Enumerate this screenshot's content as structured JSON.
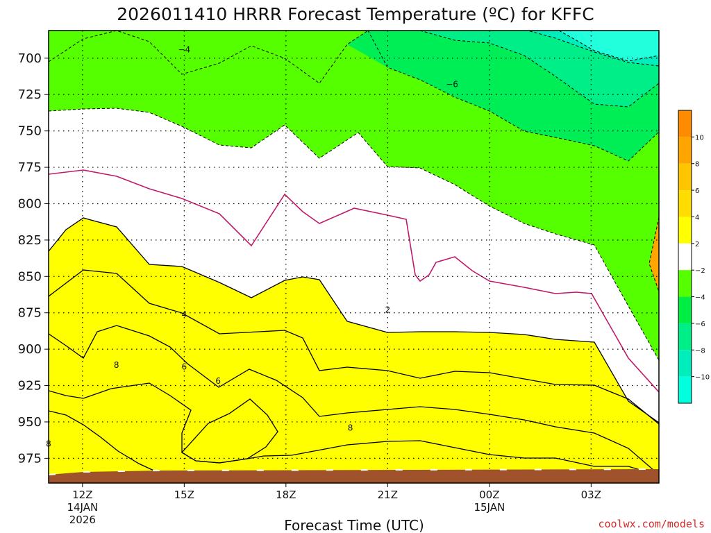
{
  "chart_data": {
    "type": "area",
    "title": "2026011410 HRRR Forecast Temperature (ºC) for KFFC",
    "xlabel": "Forecast Time (UTC)",
    "ylabel": "",
    "x_ticks": [
      {
        "label": "12Z",
        "sub1": "14JAN",
        "sub2": "2026"
      },
      {
        "label": "15Z",
        "sub1": "",
        "sub2": ""
      },
      {
        "label": "18Z",
        "sub1": "",
        "sub2": ""
      },
      {
        "label": "21Z",
        "sub1": "",
        "sub2": ""
      },
      {
        "label": "00Z",
        "sub1": "15JAN",
        "sub2": ""
      },
      {
        "label": "03Z",
        "sub1": "",
        "sub2": ""
      }
    ],
    "y_ticks": [
      {
        "label": "700",
        "value": 700
      },
      {
        "label": "725",
        "value": 725
      },
      {
        "label": "750",
        "value": 750
      },
      {
        "label": "775",
        "value": 775
      },
      {
        "label": "800",
        "value": 800
      },
      {
        "label": "825",
        "value": 825
      },
      {
        "label": "850",
        "value": 850
      },
      {
        "label": "875",
        "value": 875
      },
      {
        "label": "900",
        "value": 900
      },
      {
        "label": "925",
        "value": 925
      },
      {
        "label": "950",
        "value": 950
      },
      {
        "label": "975",
        "value": 975
      }
    ],
    "xlim_hours": [
      -1,
      17
    ],
    "ylim_hpa": [
      681,
      992
    ],
    "y_axis": "pressure (hPa), increasing downward",
    "grid": true,
    "legend": {
      "placement": "right",
      "colorbar_labels": [
        "10",
        "8",
        "6",
        "4",
        "2",
        "-2",
        "-4",
        "-6",
        "-8",
        "-10"
      ],
      "colors": [
        "#ff8c00",
        "#ffa500",
        "#ffc500",
        "#ffdd00",
        "#ffff00",
        "#ffffff",
        "#55ff00",
        "#00ee44",
        "#00ee88",
        "#00eebb",
        "#00ffdd"
      ]
    },
    "contour_labels": [
      {
        "text": "−4",
        "hour": 3.0,
        "hpa": 694
      },
      {
        "text": "−6",
        "hour": 10.9,
        "hpa": 718
      },
      {
        "text": "2",
        "hour": 9.0,
        "hpa": 873
      },
      {
        "text": "4",
        "hour": 3.0,
        "hpa": 876
      },
      {
        "text": "6",
        "hour": 3.0,
        "hpa": 912
      },
      {
        "text": "6",
        "hour": 4.0,
        "hpa": 922
      },
      {
        "text": "8",
        "hour": 1.0,
        "hpa": 911
      },
      {
        "text": "8",
        "hour": -1.0,
        "hpa": 965
      },
      {
        "text": "8",
        "hour": 7.9,
        "hpa": 954
      }
    ],
    "temperature_bands_degC": [
      {
        "range": ">10",
        "color": "#ff8c00"
      },
      {
        "range": "8 to 10",
        "color": "#ffa500"
      },
      {
        "range": "6 to 8",
        "color": "#ffc500"
      },
      {
        "range": "4 to 6",
        "color": "#ffdd00"
      },
      {
        "range": "2 to 4",
        "color": "#ffff00"
      },
      {
        "range": "-2 to 2",
        "color": "#ffffff"
      },
      {
        "range": "-4 to -2",
        "color": "#55ff00"
      },
      {
        "range": "-6 to -4",
        "color": "#00ee44"
      },
      {
        "range": "-8 to -6",
        "color": "#00ee88"
      },
      {
        "range": "-10 to -8",
        "color": "#00eebb"
      },
      {
        "range": "<-10",
        "color": "#00ffdd"
      }
    ],
    "freezing_line_color": "#c0186a",
    "terrain_color": "#a0522d"
  },
  "credit": "coolwx.com/models"
}
